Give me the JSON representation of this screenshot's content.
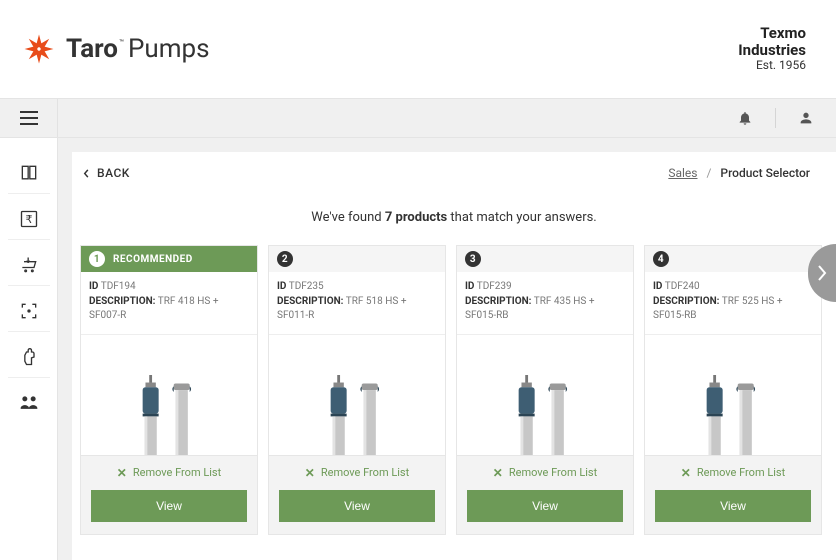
{
  "brand": {
    "name_strong": "Taro",
    "name_light": "Pumps",
    "tm": "™",
    "logo_color": "#e84c1a"
  },
  "company": {
    "line1": "Texmo",
    "line2": "Industries",
    "line3": "Est. 1956"
  },
  "colors": {
    "accent": "#6d9a57",
    "bg_grey": "#f0f0f0",
    "border": "#e4e4e4",
    "badge_dark": "#333333",
    "next_arrow_bg": "#9a9a9a"
  },
  "crumb": {
    "back_label": "BACK",
    "parent": "Sales",
    "current": "Product Selector"
  },
  "summary": {
    "prefix": "We've found ",
    "count": "7 products",
    "suffix": " that match your answers."
  },
  "labels": {
    "id": "ID",
    "description": "DESCRIPTION:",
    "recommended": "RECOMMENDED",
    "remove": "Remove From List",
    "view": "View"
  },
  "products": [
    {
      "rank": "1",
      "recommended": true,
      "id": "TDF194",
      "desc": "TRF 418 HS + SF007-R"
    },
    {
      "rank": "2",
      "recommended": false,
      "id": "TDF235",
      "desc": "TRF 518 HS + SF011-R"
    },
    {
      "rank": "3",
      "recommended": false,
      "id": "TDF239",
      "desc": "TRF 435 HS + SF015-RB"
    },
    {
      "rank": "4",
      "recommended": false,
      "id": "TDF240",
      "desc": "TRF 525 HS + SF015-RB"
    }
  ],
  "sidebar": {
    "items": [
      {
        "name": "book-icon"
      },
      {
        "name": "rupee-icon"
      },
      {
        "name": "cart-download-icon"
      },
      {
        "name": "scan-icon"
      },
      {
        "name": "hand-icon"
      },
      {
        "name": "people-icon"
      }
    ]
  }
}
